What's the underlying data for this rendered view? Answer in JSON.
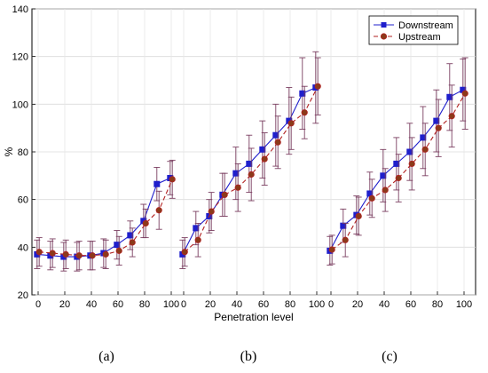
{
  "chart_data": {
    "type": "line",
    "ylabel": "%",
    "xlabel": "Penetration level",
    "ylim": [
      20,
      140
    ],
    "yticks": [
      20,
      40,
      60,
      80,
      100,
      120,
      140
    ],
    "xticks": [
      0,
      20,
      40,
      60,
      80,
      100
    ],
    "grid": true,
    "legend_position": "top-right",
    "legend": [
      "Downstream",
      "Upstream"
    ],
    "colors": {
      "Downstream": "#1f1fcc",
      "Upstream": "#b22222",
      "errorbar": "#7b3f61"
    },
    "x": [
      0,
      10,
      20,
      30,
      40,
      50,
      60,
      70,
      80,
      90,
      100
    ],
    "panels": [
      {
        "label": "(a)",
        "series": [
          {
            "name": "Downstream",
            "values": [
              37,
              36.5,
              36,
              36,
              36.5,
              37.5,
              41,
              45,
              51,
              66.5,
              69
            ],
            "err": [
              6,
              6,
              6,
              6,
              6,
              6,
              6,
              6,
              7,
              7,
              7
            ]
          },
          {
            "name": "Upstream",
            "values": [
              38,
              37.5,
              37,
              36.5,
              36.5,
              37,
              38.5,
              42,
              50,
              55.5,
              68.5
            ],
            "err": [
              6,
              6,
              6,
              6,
              6,
              6,
              6,
              6,
              6,
              8,
              8
            ]
          }
        ]
      },
      {
        "label": "(b)",
        "series": [
          {
            "name": "Downstream",
            "values": [
              37,
              48,
              53,
              62,
              71,
              75,
              81,
              87,
              93,
              104.5,
              107
            ],
            "err": [
              6,
              7,
              7,
              9,
              11,
              12,
              12,
              13,
              14,
              15,
              15
            ]
          },
          {
            "name": "Upstream",
            "values": [
              38,
              43,
              55,
              62,
              65,
              70.5,
              77,
              84,
              92,
              96.5,
              107.5
            ],
            "err": [
              6,
              7,
              8,
              9,
              10,
              11,
              11,
              11,
              11,
              11,
              12
            ]
          }
        ]
      },
      {
        "label": "(c)",
        "series": [
          {
            "name": "Downstream",
            "values": [
              38.5,
              49,
              53.5,
              62.5,
              70,
              75,
              80,
              86,
              93,
              103,
              106
            ],
            "err": [
              6,
              7,
              8,
              9,
              11,
              11,
              12,
              13,
              13,
              14,
              13
            ]
          },
          {
            "name": "Upstream",
            "values": [
              39,
              43,
              53,
              60.5,
              64,
              69,
              75,
              81,
              90,
              95,
              104.5
            ],
            "err": [
              6,
              7,
              8,
              8,
              9,
              10,
              11,
              11,
              12,
              13,
              15
            ]
          }
        ]
      }
    ]
  }
}
